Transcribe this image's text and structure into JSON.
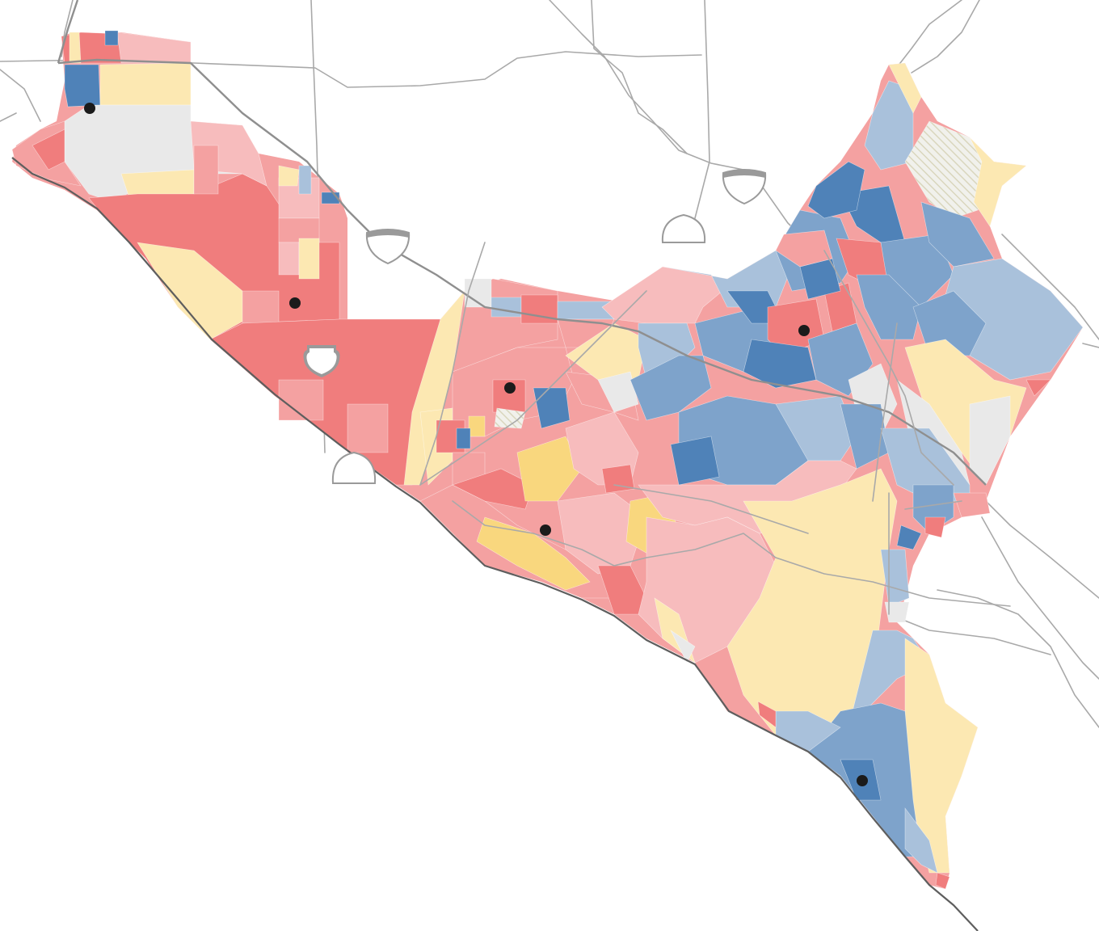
{
  "map": {
    "colors": {
      "blue_dark": "#4f82b8",
      "blue_mid": "#7ea3cb",
      "blue_light": "#a9c1db",
      "red_dark": "#f07d7d",
      "red_mid": "#f4a1a1",
      "red_light": "#f7bcbd",
      "yellow_mid": "#f9d77e",
      "yellow_light": "#fce8b2",
      "no_data": "#e9e9e9",
      "road": "#a9a9a9",
      "coast": "#5e5e5e",
      "dot": "#1b1b1b"
    },
    "shields": [
      "interstate-shield",
      "interstate-shield",
      "interstate-shield",
      "us-route-shield",
      "state-route-shield",
      "state-route-shield"
    ],
    "city_markers": 6,
    "hatched_areas": 2
  }
}
